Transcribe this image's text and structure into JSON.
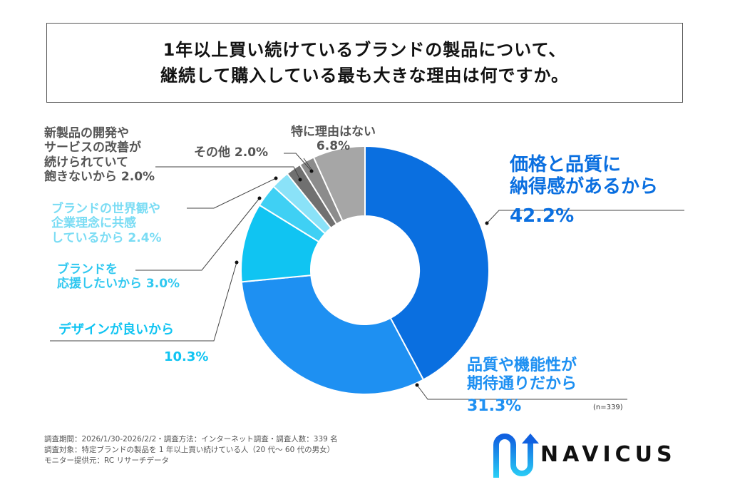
{
  "title": [
    "1年以上買い続けているブランドの製品について、",
    "継続して購入している最も大きな理由は何ですか。"
  ],
  "chart_data": {
    "type": "pie",
    "donut": true,
    "categories": [
      "価格と品質に納得感があるから",
      "品質や機能性が期待通りだから",
      "デザインが良いから",
      "ブランドを応援したいから",
      "ブランドの世界観や企業理念に共感しているから",
      "新製品の開発やサービスの改善が続けられていて飽きないから",
      "その他",
      "特に理由はない"
    ],
    "values": [
      42.2,
      31.3,
      10.3,
      3.0,
      2.4,
      2.0,
      2.0,
      6.8
    ],
    "value_labels": [
      "42.2%",
      "31.3%",
      "10.3%",
      "3.0%",
      "2.4%",
      "2.0%",
      "2.0%",
      "6.8%"
    ],
    "colors": [
      "#0a6fe0",
      "#1e90f2",
      "#10c4f2",
      "#3fd0f4",
      "#8ae2f8",
      "#707070",
      "#8c8c8c",
      "#a6a6a6"
    ],
    "start": "top",
    "direction": "clockwise"
  },
  "labels": {
    "price": [
      "価格と品質に",
      "納得感があるから"
    ],
    "quality": [
      "品質や機能性が",
      "期待通りだから"
    ],
    "design": "デザインが良いから",
    "support": [
      "ブランドを",
      "応援したいから"
    ],
    "world": [
      "ブランドの世界観や",
      "企業理念に共感",
      "しているから"
    ],
    "newprod": [
      "新製品の開発や",
      "サービスの改善が",
      "続けられていて",
      "飽きないから"
    ],
    "other": "その他",
    "none": "特に理由はない"
  },
  "n": "(n=339)",
  "footnote": [
    "調査期間：2026/1/30-2026/2/2・調査方法：インターネット調査・調査人数：339 名",
    "調査対象：特定ブランドの製品を 1 年以上買い続けている人（20 代～ 60 代の男女）",
    "モニター提供元：RC リサーチデータ"
  ],
  "logo": "NAVICUS"
}
